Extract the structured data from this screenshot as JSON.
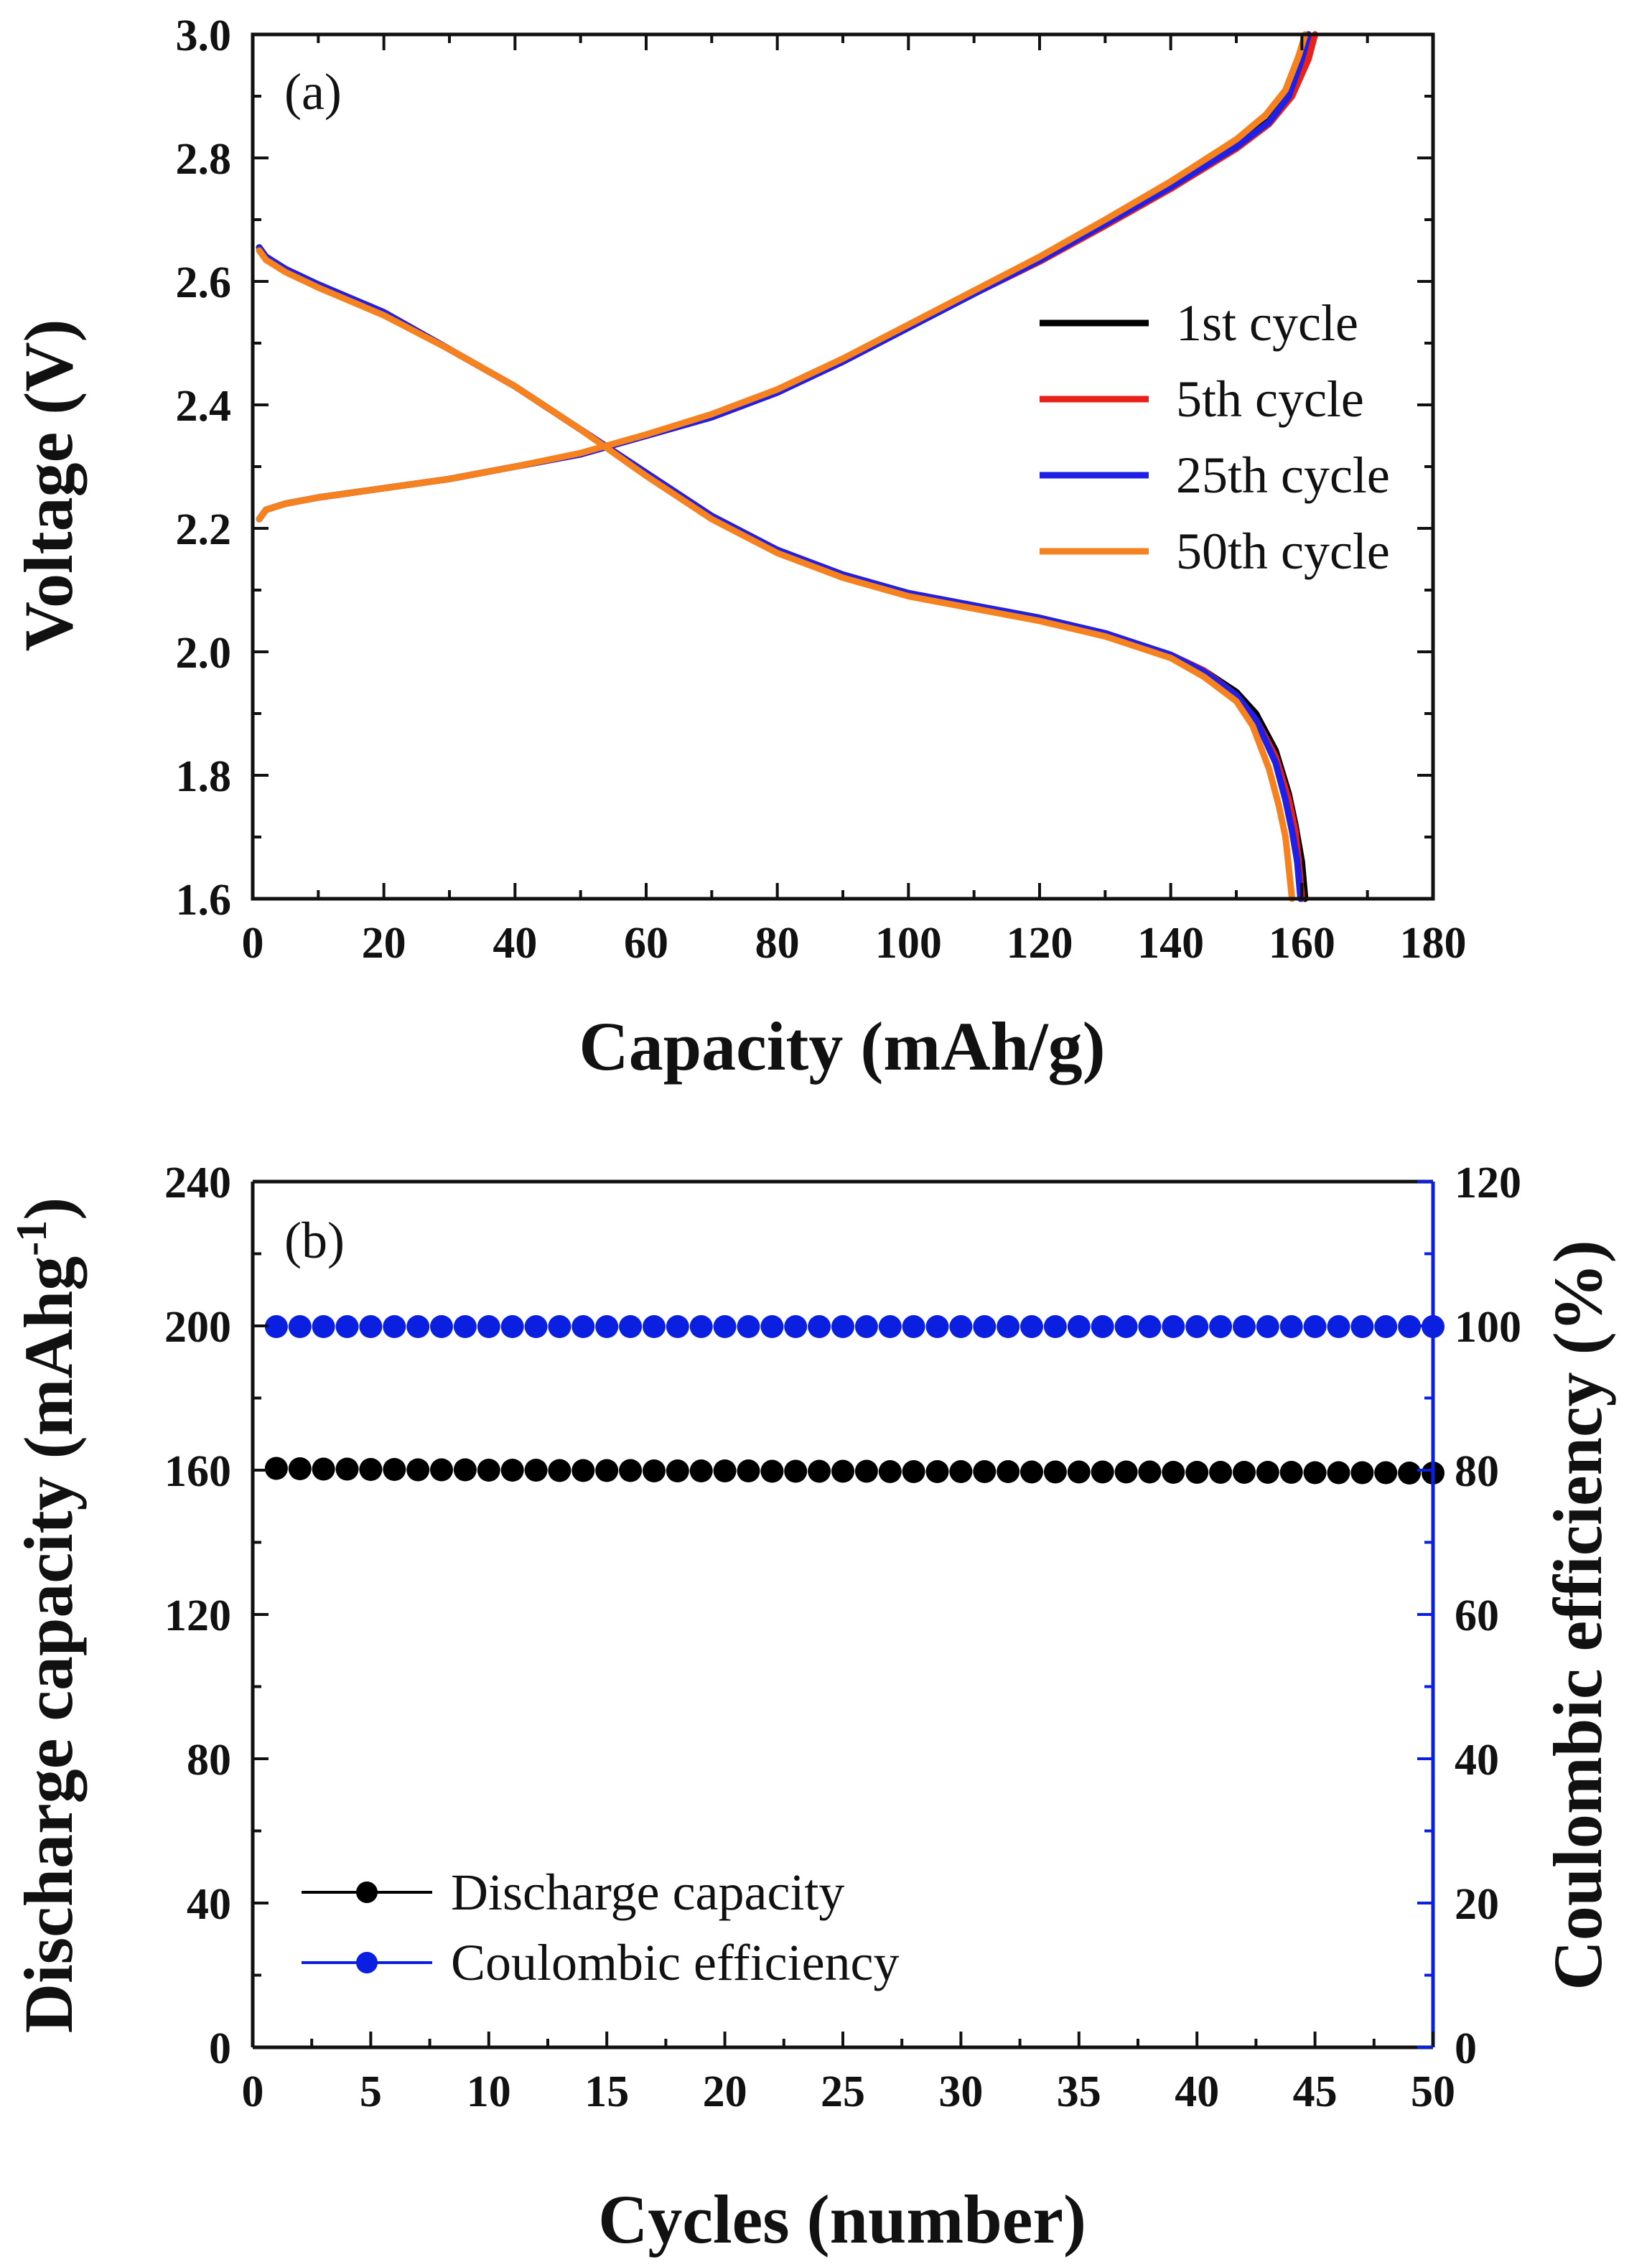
{
  "colors": {
    "axis": "#111111",
    "cycle1": "#000000",
    "cycle5": "#e8221b",
    "cycle25": "#1f1fe6",
    "cycle50": "#f5821f",
    "discharge_marker": "#000000",
    "coulombic_marker": "#0b1fe0",
    "coulombic_axis": "#0b1fe0"
  },
  "chart_data": [
    {
      "type": "line",
      "panel_label": "(a)",
      "title": "",
      "xlabel": "Capacity (mAh/g)",
      "ylabel": "Voltage (V)",
      "xlim": [
        0,
        180
      ],
      "ylim": [
        1.6,
        3.0
      ],
      "xticks": [
        0,
        20,
        40,
        60,
        80,
        100,
        120,
        140,
        160,
        180
      ],
      "xtick_labels": [
        "0",
        "20",
        "40",
        "60",
        "80",
        "100",
        "120",
        "140",
        "160",
        "180"
      ],
      "yticks": [
        1.6,
        1.8,
        2.0,
        2.2,
        2.4,
        2.6,
        2.8,
        3.0
      ],
      "ytick_labels": [
        "1.6",
        "1.8",
        "2.0",
        "2.2",
        "2.4",
        "2.6",
        "2.8",
        "3.0"
      ],
      "legend_position": "right",
      "series": [
        {
          "name": "1st cycle",
          "color_key": "cycle1",
          "charge": {
            "x": [
              1,
              2,
              5,
              10,
              20,
              30,
              40,
              50,
              60,
              70,
              80,
              90,
              100,
              110,
              120,
              130,
              140,
              150,
              155,
              158,
              160,
              161
            ],
            "y": [
              2.215,
              2.23,
              2.24,
              2.25,
              2.265,
              2.28,
              2.3,
              2.32,
              2.35,
              2.38,
              2.42,
              2.47,
              2.525,
              2.58,
              2.635,
              2.695,
              2.755,
              2.82,
              2.86,
              2.9,
              2.96,
              3.0
            ]
          },
          "discharge": {
            "x": [
              1,
              2,
              5,
              10,
              20,
              30,
              40,
              50,
              60,
              70,
              80,
              90,
              100,
              110,
              120,
              130,
              140,
              145,
              150,
              153,
              156,
              158,
              159,
              160,
              160.5
            ],
            "y": [
              2.655,
              2.64,
              2.62,
              2.595,
              2.55,
              2.49,
              2.43,
              2.36,
              2.29,
              2.22,
              2.165,
              2.125,
              2.095,
              2.075,
              2.055,
              2.03,
              1.995,
              1.97,
              1.935,
              1.9,
              1.84,
              1.77,
              1.72,
              1.66,
              1.6
            ]
          }
        },
        {
          "name": "5th cycle",
          "color_key": "cycle5",
          "charge": {
            "x": [
              1,
              2,
              5,
              10,
              20,
              30,
              40,
              50,
              60,
              70,
              80,
              90,
              100,
              110,
              120,
              130,
              140,
              150,
              155,
              158.5,
              161,
              162
            ],
            "y": [
              2.215,
              2.23,
              2.24,
              2.25,
              2.265,
              2.28,
              2.3,
              2.32,
              2.35,
              2.38,
              2.42,
              2.47,
              2.525,
              2.58,
              2.632,
              2.69,
              2.75,
              2.815,
              2.855,
              2.9,
              2.96,
              3.0
            ]
          },
          "discharge": {
            "x": [
              1,
              2,
              5,
              10,
              20,
              30,
              40,
              50,
              60,
              70,
              80,
              90,
              100,
              110,
              120,
              130,
              140,
              145,
              150,
              153,
              156,
              158,
              159,
              159.5,
              160
            ],
            "y": [
              2.655,
              2.64,
              2.62,
              2.595,
              2.55,
              2.49,
              2.43,
              2.36,
              2.29,
              2.22,
              2.165,
              2.125,
              2.095,
              2.075,
              2.055,
              2.03,
              1.995,
              1.97,
              1.93,
              1.89,
              1.83,
              1.76,
              1.71,
              1.66,
              1.6
            ]
          }
        },
        {
          "name": "25th cycle",
          "color_key": "cycle25",
          "charge": {
            "x": [
              1,
              2,
              5,
              10,
              20,
              30,
              40,
              50,
              60,
              70,
              80,
              90,
              100,
              110,
              120,
              130,
              140,
              150,
              155,
              158,
              160,
              161
            ],
            "y": [
              2.215,
              2.23,
              2.24,
              2.25,
              2.265,
              2.28,
              2.3,
              2.32,
              2.35,
              2.38,
              2.42,
              2.47,
              2.525,
              2.58,
              2.634,
              2.693,
              2.753,
              2.818,
              2.858,
              2.9,
              2.96,
              3.0
            ]
          },
          "discharge": {
            "x": [
              1,
              2,
              5,
              10,
              20,
              30,
              40,
              50,
              60,
              70,
              80,
              90,
              100,
              110,
              120,
              130,
              140,
              145,
              150,
              153,
              156,
              157.5,
              158.5,
              159.3,
              159.8
            ],
            "y": [
              2.655,
              2.64,
              2.62,
              2.595,
              2.55,
              2.49,
              2.43,
              2.36,
              2.29,
              2.22,
              2.165,
              2.125,
              2.095,
              2.075,
              2.055,
              2.03,
              1.995,
              1.968,
              1.93,
              1.89,
              1.82,
              1.76,
              1.71,
              1.66,
              1.6
            ]
          }
        },
        {
          "name": "50th cycle",
          "color_key": "cycle50",
          "charge": {
            "x": [
              1,
              2,
              5,
              10,
              20,
              30,
              40,
              50,
              60,
              70,
              80,
              90,
              100,
              110,
              120,
              130,
              140,
              150,
              154.5,
              157.5,
              159.5,
              160.5
            ],
            "y": [
              2.215,
              2.23,
              2.24,
              2.25,
              2.265,
              2.28,
              2.3,
              2.322,
              2.352,
              2.385,
              2.425,
              2.475,
              2.53,
              2.585,
              2.64,
              2.7,
              2.762,
              2.83,
              2.87,
              2.91,
              2.965,
              3.0
            ]
          },
          "discharge": {
            "x": [
              1,
              2,
              5,
              10,
              20,
              30,
              40,
              50,
              60,
              70,
              80,
              90,
              100,
              110,
              120,
              130,
              140,
              145,
              150,
              152.5,
              155,
              156.5,
              157.5,
              158,
              158.5
            ],
            "y": [
              2.65,
              2.635,
              2.615,
              2.59,
              2.545,
              2.49,
              2.43,
              2.36,
              2.285,
              2.215,
              2.16,
              2.12,
              2.09,
              2.07,
              2.05,
              2.025,
              1.99,
              1.96,
              1.92,
              1.88,
              1.81,
              1.75,
              1.7,
              1.65,
              1.6
            ]
          }
        }
      ]
    },
    {
      "type": "scatter",
      "panel_label": "(b)",
      "title": "",
      "xlabel": "Cycles (number)",
      "ylabel": "Discharge capacity (mAhg",
      "ylabel_superscript": "-1",
      "ylabel_close": ")",
      "y2label": "Coulombic efficiency (%)",
      "xlim": [
        0,
        50
      ],
      "ylim": [
        0,
        240
      ],
      "y2lim": [
        0,
        120
      ],
      "xticks": [
        0,
        5,
        10,
        15,
        20,
        25,
        30,
        35,
        40,
        45,
        50
      ],
      "xtick_labels": [
        "0",
        "5",
        "10",
        "15",
        "20",
        "25",
        "30",
        "35",
        "40",
        "45",
        "50"
      ],
      "yticks": [
        0,
        40,
        80,
        120,
        160,
        200,
        240
      ],
      "ytick_labels": [
        "0",
        "40",
        "80",
        "120",
        "160",
        "200",
        "240"
      ],
      "y2ticks": [
        0,
        20,
        40,
        60,
        80,
        100,
        120
      ],
      "y2tick_labels": [
        "0",
        "20",
        "40",
        "60",
        "80",
        "100",
        "120"
      ],
      "legend_position": "bottom-left",
      "x": [
        1,
        2,
        3,
        4,
        5,
        6,
        7,
        8,
        9,
        10,
        11,
        12,
        13,
        14,
        15,
        16,
        17,
        18,
        19,
        20,
        21,
        22,
        23,
        24,
        25,
        26,
        27,
        28,
        29,
        30,
        31,
        32,
        33,
        34,
        35,
        36,
        37,
        38,
        39,
        40,
        41,
        42,
        43,
        44,
        45,
        46,
        47,
        48,
        49,
        50
      ],
      "series": [
        {
          "name": "Discharge capacity",
          "axis": "left",
          "color_key": "discharge_marker",
          "values": [
            160.5,
            160.4,
            160.3,
            160.3,
            160.2,
            160.2,
            160.1,
            160.1,
            160.1,
            160.0,
            160.0,
            160.0,
            159.9,
            159.9,
            159.9,
            159.9,
            159.8,
            159.8,
            159.8,
            159.8,
            159.8,
            159.7,
            159.7,
            159.7,
            159.7,
            159.7,
            159.6,
            159.6,
            159.6,
            159.6,
            159.6,
            159.6,
            159.5,
            159.5,
            159.5,
            159.5,
            159.5,
            159.5,
            159.4,
            159.4,
            159.4,
            159.4,
            159.4,
            159.4,
            159.3,
            159.3,
            159.3,
            159.3,
            159.2,
            159.2
          ]
        },
        {
          "name": "Coulombic efficiency",
          "axis": "right",
          "color_key": "coulombic_marker",
          "values": [
            99.9,
            99.9,
            99.9,
            99.9,
            99.9,
            99.9,
            99.9,
            99.9,
            99.9,
            99.9,
            99.9,
            99.9,
            99.9,
            99.9,
            99.9,
            99.9,
            99.9,
            99.9,
            99.9,
            99.9,
            99.9,
            99.9,
            99.9,
            99.9,
            99.9,
            99.9,
            99.9,
            99.9,
            99.9,
            99.9,
            99.9,
            99.9,
            99.9,
            99.9,
            99.9,
            99.9,
            99.9,
            99.9,
            99.9,
            99.9,
            99.9,
            99.9,
            99.9,
            99.9,
            99.9,
            99.9,
            99.9,
            99.9,
            99.9,
            99.9
          ]
        }
      ]
    }
  ]
}
